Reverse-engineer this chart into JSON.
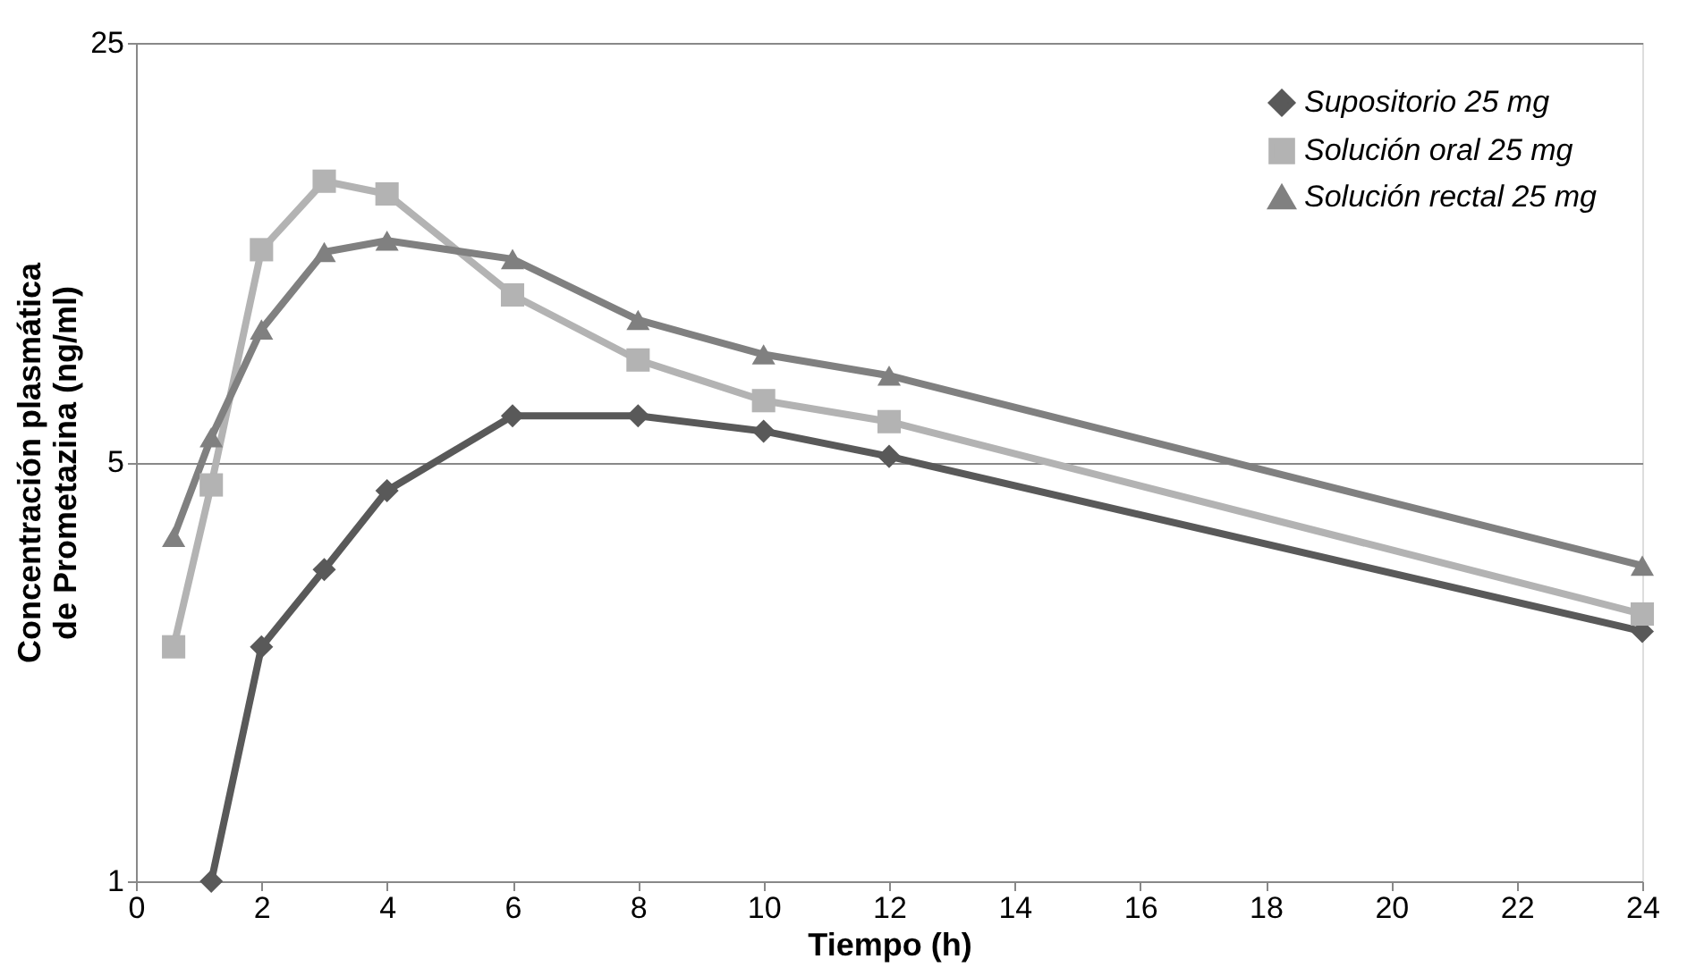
{
  "chart_data": {
    "type": "line",
    "xlabel": "Tiempo (h)",
    "ylabel": "Concentración plasmática de Prometazina (ng/ml)",
    "log": "y",
    "xlim": [
      0,
      24
    ],
    "xticks": [
      0,
      2,
      4,
      6,
      8,
      10,
      12,
      14,
      16,
      18,
      20,
      22,
      24
    ],
    "ylim": [
      1,
      25
    ],
    "yticks": [
      1,
      5,
      25
    ],
    "grid": "y",
    "legend": "top right",
    "series": [
      {
        "name": "Supositorio 25 mg",
        "color": "#595959",
        "marker": "diamond",
        "x": [
          1.2,
          2,
          3,
          4,
          6,
          8,
          10,
          12,
          24
        ],
        "values": [
          1.0,
          2.46,
          3.31,
          4.48,
          5.97,
          5.97,
          5.63,
          5.11,
          2.61
        ]
      },
      {
        "name": "Solución oral 25 mg",
        "color": "#b3b3b3",
        "marker": "square",
        "x": [
          0.6,
          1.2,
          2,
          3,
          4,
          6,
          8,
          10,
          12,
          24
        ],
        "values": [
          2.46,
          4.58,
          11.3,
          14.7,
          14.0,
          9.5,
          7.4,
          6.33,
          5.84,
          2.79
        ]
      },
      {
        "name": "Solución rectal 25 mg",
        "color": "#808080",
        "marker": "triangle",
        "x": [
          0.6,
          1.2,
          2,
          3,
          4,
          6,
          8,
          10,
          12,
          24
        ],
        "values": [
          3.75,
          5.5,
          8.32,
          11.2,
          11.7,
          10.9,
          8.63,
          7.56,
          6.97,
          3.36
        ]
      }
    ]
  }
}
